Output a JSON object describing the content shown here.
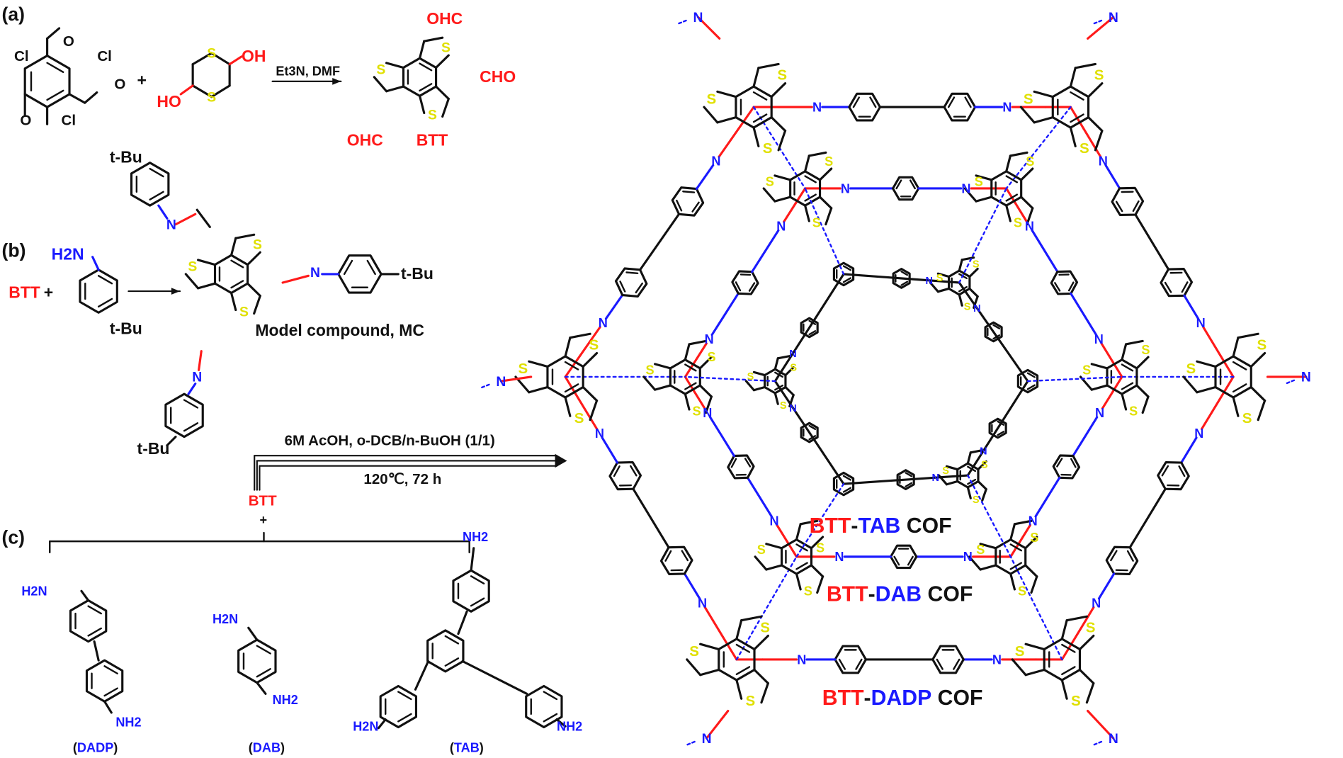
{
  "panel_labels": {
    "a": "(a)",
    "b": "(b)",
    "c": "(c)"
  },
  "atoms": {
    "S": "S",
    "N": "N",
    "O": "O",
    "Cl": "Cl"
  },
  "colors": {
    "aldehyde_btt": "#ff1a1a",
    "amine": "#1a1aff",
    "sulfur": "#e0e000",
    "bonds": "#111111"
  },
  "scheme_a": {
    "plus": "+",
    "oh": "OH",
    "ho": "HO",
    "conditions": "Et3N, DMF",
    "ohc_top": "OHC",
    "cho_right": "CHO",
    "ohc_bottom": "OHC",
    "product": "BTT"
  },
  "scheme_b": {
    "reactant": "BTT",
    "plus": "+",
    "amine": "H2N",
    "tbu": "t-Bu",
    "product_label": "Model compound, MC"
  },
  "scheme_c": {
    "conditions_top": "6M AcOH, o-DCB/n-BuOH (1/1)",
    "conditions_bottom": "120℃, 72 h",
    "reactant": "BTT",
    "plus": "+",
    "nh2": "NH2",
    "h2n": "H2N",
    "linkers": [
      {
        "open": "(",
        "name": "DADP",
        "close": ")"
      },
      {
        "open": "(",
        "name": "DAB",
        "close": ")"
      },
      {
        "open": "(",
        "name": "TAB",
        "close": ")"
      }
    ]
  },
  "cof_labels": [
    {
      "node": "BTT",
      "dash": "-",
      "linker": "TAB",
      "suffix": " COF"
    },
    {
      "node": "BTT",
      "dash": "-",
      "linker": "DAB",
      "suffix": " COF"
    },
    {
      "node": "BTT",
      "dash": "-",
      "linker": "DADP",
      "suffix": " COF"
    }
  ]
}
